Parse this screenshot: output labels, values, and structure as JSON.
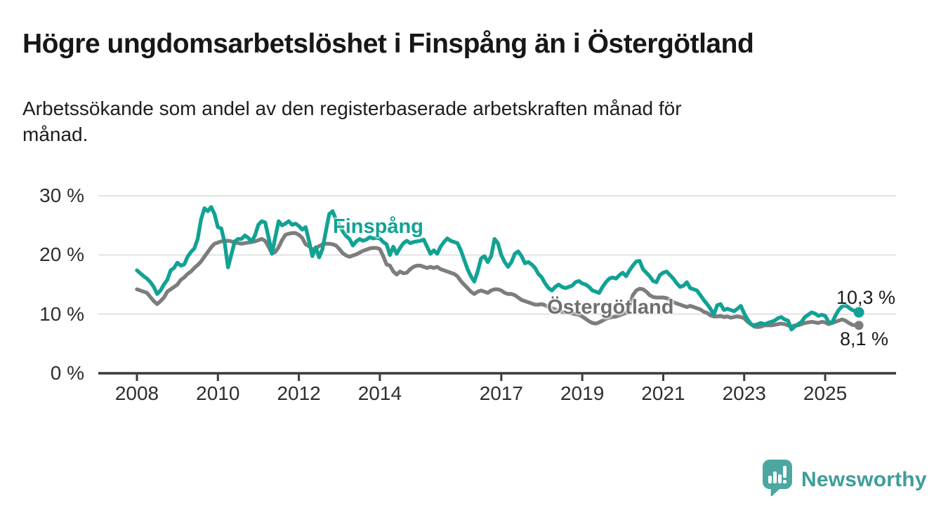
{
  "page": {
    "title": "Högre ungdomsarbetslöshet i Finspång än i Östergötland",
    "subtitle": "Arbetssökande som andel av den registerbaserade arbetskraften månad för månad.",
    "subtitle_lines": [
      "Arbetssökande som andel av den registerbaserade arbetskraften månad för",
      "månad."
    ]
  },
  "chart_data": {
    "type": "line",
    "unit": "%",
    "frequency": "monthly",
    "x_start": "2008-01",
    "x_end": "2025-11",
    "ylim": [
      0,
      30
    ],
    "grid": "horizontal-only",
    "y_ticks": [
      "30 %",
      "20 %",
      "10 %",
      "0 %"
    ],
    "y_tick_values": [
      30,
      20,
      10,
      0
    ],
    "x_ticks": [
      "2008",
      "2010",
      "2012",
      "2014",
      "2017",
      "2019",
      "2021",
      "2023",
      "2025"
    ],
    "x_tick_years": [
      2008,
      2010,
      2012,
      2014,
      2017,
      2019,
      2021,
      2023,
      2025
    ],
    "legend_position": "inline-labels-on-lines",
    "series": [
      {
        "name": "Finspång",
        "color": "#12A294",
        "end_value": 10.3,
        "end_label": "10,3 %",
        "values": [
          17.4,
          16.9,
          16.4,
          16.0,
          15.4,
          14.6,
          13.4,
          14.0,
          15.0,
          15.8,
          17.4,
          17.8,
          18.7,
          18.2,
          18.4,
          19.7,
          20.5,
          21.1,
          22.7,
          26.0,
          27.9,
          27.4,
          28.1,
          26.9,
          24.7,
          24.5,
          22.1,
          17.9,
          20.1,
          22.3,
          22.7,
          22.7,
          23.3,
          22.9,
          22.3,
          23.3,
          25.1,
          25.7,
          25.5,
          23.0,
          20.2,
          23.0,
          25.7,
          25.0,
          25.3,
          25.7,
          25.1,
          25.3,
          24.9,
          24.3,
          24.7,
          22.4,
          19.8,
          21.3,
          19.6,
          21.0,
          24.0,
          26.9,
          27.4,
          26.0,
          25.0,
          24.0,
          23.2,
          22.7,
          21.6,
          22.3,
          22.7,
          22.4,
          22.6,
          23.0,
          22.8,
          22.9,
          22.8,
          22.2,
          21.8,
          20.0,
          21.4,
          20.2,
          21.2,
          22.0,
          22.4,
          22.0,
          22.2,
          22.3,
          22.4,
          22.6,
          21.4,
          20.2,
          20.8,
          20.2,
          21.4,
          22.2,
          22.8,
          22.4,
          22.2,
          22.0,
          20.8,
          19.2,
          17.6,
          16.4,
          15.5,
          17.2,
          19.4,
          19.8,
          18.8,
          19.8,
          22.7,
          22.0,
          20.0,
          18.8,
          18.0,
          18.8,
          20.2,
          20.6,
          19.8,
          18.6,
          18.8,
          18.4,
          17.8,
          16.8,
          16.2,
          15.2,
          14.4,
          14.0,
          14.6,
          15.0,
          14.6,
          14.4,
          14.6,
          14.8,
          15.4,
          15.6,
          15.2,
          15.0,
          14.6,
          14.0,
          13.8,
          13.6,
          14.6,
          15.4,
          16.0,
          16.2,
          16.0,
          16.6,
          17.0,
          16.4,
          17.4,
          18.2,
          18.9,
          19.0,
          17.6,
          17.0,
          16.4,
          15.6,
          15.4,
          16.6,
          17.0,
          17.2,
          16.6,
          16.0,
          15.2,
          14.6,
          14.8,
          15.4,
          14.4,
          14.2,
          14.0,
          13.2,
          12.4,
          11.7,
          10.9,
          9.9,
          11.5,
          11.7,
          10.7,
          10.9,
          10.7,
          10.5,
          10.9,
          11.4,
          10.1,
          9.1,
          8.3,
          8.1,
          8.3,
          8.5,
          8.3,
          8.5,
          8.7,
          8.9,
          9.3,
          9.5,
          9.1,
          8.9,
          7.4,
          7.9,
          8.3,
          8.7,
          9.5,
          9.9,
          10.3,
          10.1,
          9.7,
          9.9,
          9.7,
          8.7,
          8.5,
          9.7,
          10.7,
          11.3,
          11.5,
          11.1,
          10.7,
          10.5,
          10.3
        ]
      },
      {
        "name": "Östergötland",
        "color": "#7d7d7d",
        "end_value": 8.1,
        "end_label": "8,1 %",
        "values": [
          14.2,
          14.0,
          13.8,
          13.6,
          12.9,
          12.2,
          11.7,
          12.2,
          12.8,
          13.8,
          14.2,
          14.6,
          15.0,
          15.8,
          16.2,
          16.8,
          17.2,
          17.8,
          18.3,
          18.9,
          19.7,
          20.5,
          21.3,
          21.9,
          22.1,
          22.3,
          22.4,
          22.4,
          22.3,
          22.1,
          22.0,
          21.9,
          22.0,
          22.1,
          22.2,
          22.3,
          22.5,
          22.7,
          22.4,
          21.4,
          20.3,
          20.5,
          21.3,
          22.5,
          23.4,
          23.6,
          23.7,
          23.7,
          23.4,
          22.9,
          21.8,
          21.5,
          20.9,
          21.1,
          21.5,
          21.8,
          21.9,
          21.9,
          21.8,
          21.6,
          21.0,
          20.3,
          19.9,
          19.7,
          19.9,
          20.1,
          20.4,
          20.7,
          20.9,
          21.1,
          21.2,
          21.2,
          21.0,
          19.8,
          18.4,
          18.2,
          17.2,
          16.7,
          17.2,
          16.9,
          17.0,
          17.6,
          18.0,
          18.2,
          18.2,
          18.0,
          17.8,
          18.0,
          17.8,
          18.0,
          17.6,
          17.4,
          17.2,
          17.0,
          16.8,
          16.4,
          15.6,
          15.0,
          14.4,
          13.8,
          13.4,
          13.8,
          14.0,
          13.8,
          13.6,
          14.0,
          14.2,
          14.2,
          14.0,
          13.6,
          13.4,
          13.4,
          13.2,
          12.8,
          12.4,
          12.2,
          12.0,
          11.8,
          11.6,
          11.6,
          11.7,
          11.5,
          11.2,
          11.0,
          10.8,
          10.6,
          10.4,
          10.3,
          10.2,
          10.1,
          10.0,
          9.9,
          9.6,
          9.2,
          8.8,
          8.5,
          8.4,
          8.6,
          8.9,
          9.2,
          9.4,
          9.5,
          9.6,
          9.8,
          10.0,
          10.2,
          11.4,
          13.2,
          14.0,
          14.3,
          14.2,
          13.8,
          13.2,
          12.9,
          12.8,
          12.8,
          12.8,
          12.7,
          12.4,
          12.0,
          11.8,
          11.6,
          11.4,
          11.2,
          11.4,
          11.2,
          11.0,
          10.8,
          10.4,
          10.2,
          9.8,
          9.6,
          9.6,
          9.7,
          9.5,
          9.6,
          9.4,
          9.5,
          9.6,
          9.5,
          9.3,
          8.7,
          8.3,
          7.9,
          7.8,
          7.9,
          8.1,
          8.1,
          8.1,
          8.2,
          8.3,
          8.4,
          8.3,
          8.1,
          7.9,
          8.1,
          8.1,
          8.3,
          8.5,
          8.6,
          8.7,
          8.6,
          8.5,
          8.7,
          8.6,
          8.3,
          8.5,
          8.7,
          8.9,
          9.1,
          8.9,
          8.5,
          8.2,
          8.1,
          8.1
        ]
      }
    ],
    "colors": {
      "grid": "#dcdcdc",
      "axis": "#3a3a3a",
      "finspang": "#12A294",
      "ostergotland": "#7d7d7d"
    }
  },
  "footer": {
    "brand": "Newsworthy",
    "brand_color": "#3d9e99"
  }
}
